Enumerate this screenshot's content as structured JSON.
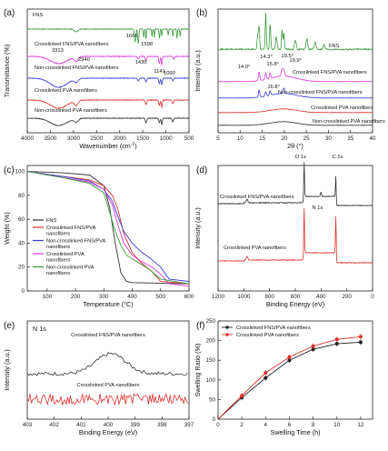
{
  "chart_data": [
    {
      "panel": "(a)",
      "type": "line",
      "xlabel_main": "Wavenumber (cm",
      "xlabel_unit": "-1",
      "xlabel_tail": ")",
      "ylabel": "Transmittance (%)",
      "xlim": [
        4000,
        500
      ],
      "xticks": [
        "4000",
        "3500",
        "3000",
        "2500",
        "2000",
        "1500",
        "1000",
        "500"
      ],
      "series": [
        {
          "name": "FNS",
          "color": "#3a9a3a"
        },
        {
          "name": "Crosslinked FNS/PVA nanofibers",
          "color": "#d838d8"
        },
        {
          "name": "Non-crosslinked FNS/PVA nanofibers",
          "color": "#3b3bd6"
        },
        {
          "name": "Crosslinked PVA nanofibers",
          "color": "#e03030"
        },
        {
          "name": "Non-crosslinked PVA nanofibers",
          "color": "#333333"
        }
      ],
      "annotations": [
        "1666",
        "1598",
        "3313",
        "2940",
        "1430",
        "1141",
        "1090"
      ]
    },
    {
      "panel": "(b)",
      "type": "line",
      "xlabel": "2θ (°)",
      "ylabel": "Intensity (a.u.)",
      "xlim": [
        5,
        40
      ],
      "xticks": [
        "5",
        "10",
        "15",
        "20",
        "25",
        "30",
        "35",
        "40"
      ],
      "series": [
        {
          "name": "FNS",
          "color": "#3a9a3a"
        },
        {
          "name": "Crosslinked FNS/PVA nanofibers",
          "color": "#d838d8"
        },
        {
          "name": "Non-crosslinked FNS/PVA nanofibers",
          "color": "#3b3bd6"
        },
        {
          "name": "Crosslinked PVA nanofibers",
          "color": "#e03030"
        },
        {
          "name": "Non-crosslinked PVA nanofibers",
          "color": "#333333"
        }
      ],
      "annotations": [
        "14.0°",
        "14.3°",
        "15.8°",
        "16.8°",
        "19.5°",
        "19.9°"
      ]
    },
    {
      "panel": "(c)",
      "type": "line",
      "xlabel": "Temperature (°C)",
      "ylabel": "Weight (%)",
      "xlim": [
        30,
        600
      ],
      "ylim": [
        0,
        105
      ],
      "xticks": [
        "100",
        "200",
        "300",
        "400",
        "500",
        "600"
      ],
      "yticks": [
        "0",
        "20",
        "40",
        "60",
        "80",
        "100"
      ],
      "series": [
        {
          "name": "FNS",
          "color": "#333333",
          "x": [
            30,
            150,
            250,
            300,
            320,
            340,
            360,
            380,
            400,
            600
          ],
          "y": [
            100,
            99,
            97,
            88,
            70,
            40,
            15,
            8,
            7,
            6
          ]
        },
        {
          "name": "Crosslinked FNS/PVA nanofibers",
          "color": "#e03030",
          "x": [
            30,
            150,
            250,
            300,
            330,
            350,
            370,
            400,
            430,
            470,
            500,
            600
          ],
          "y": [
            100,
            96,
            93,
            88,
            80,
            68,
            48,
            32,
            24,
            16,
            8,
            6
          ]
        },
        {
          "name": "Non-crosslinked FNS/PVA nanofibers",
          "color": "#3b3bd6",
          "x": [
            30,
            150,
            250,
            300,
            330,
            350,
            370,
            400,
            430,
            460,
            500,
            530,
            600
          ],
          "y": [
            100,
            96,
            92,
            85,
            75,
            62,
            50,
            40,
            33,
            28,
            20,
            10,
            8
          ]
        },
        {
          "name": "Crosslinked PVA nanofibers",
          "color": "#d838d8",
          "x": [
            30,
            150,
            250,
            300,
            330,
            350,
            370,
            400,
            430,
            470,
            500,
            530,
            600
          ],
          "y": [
            100,
            95,
            91,
            85,
            72,
            55,
            40,
            30,
            25,
            20,
            14,
            6,
            4
          ]
        },
        {
          "name": "Non-crosslinked PVA nanofibers",
          "color": "#3a9a3a",
          "x": [
            30,
            150,
            250,
            300,
            320,
            340,
            360,
            380,
            420,
            460,
            500,
            600
          ],
          "y": [
            100,
            95,
            90,
            82,
            66,
            50,
            38,
            30,
            24,
            18,
            10,
            6
          ]
        }
      ]
    },
    {
      "panel": "(d)",
      "type": "line",
      "xlabel": "Binding Energy (eV)",
      "ylabel": "Intensity (a.u.)",
      "xlim": [
        1200,
        0
      ],
      "xticks": [
        "1200",
        "1000",
        "800",
        "600",
        "400",
        "200",
        "0"
      ],
      "series": [
        {
          "name": "Crosslinked FNS/PVA nanofibers",
          "color": "#333333"
        },
        {
          "name": "Crosslinked PVA nanofibers",
          "color": "#e03030"
        }
      ],
      "annotations": [
        "O 1s",
        "C 1s",
        "N 1s"
      ]
    },
    {
      "panel": "(e)",
      "type": "line",
      "xlabel": "Binding Energy (eV)",
      "ylabel": "Intensity (a.u.)",
      "title": "N 1s",
      "xlim": [
        403,
        397
      ],
      "xticks": [
        "403",
        "402",
        "401",
        "400",
        "399",
        "398",
        "397"
      ],
      "series": [
        {
          "name": "Crosslinked FNS/PVA nanofibers",
          "color": "#333333"
        },
        {
          "name": "Crosslinked PVA nanofibers",
          "color": "#e03030"
        }
      ]
    },
    {
      "panel": "(f)",
      "type": "line",
      "xlabel": "Swelling Time (h)",
      "ylabel": "Swelling Ratio (%)",
      "xlim": [
        0,
        13
      ],
      "ylim": [
        0,
        250
      ],
      "xticks": [
        "0",
        "2",
        "4",
        "6",
        "8",
        "10",
        "12"
      ],
      "yticks": [
        "0",
        "50",
        "100",
        "150",
        "200",
        "250"
      ],
      "legend": "top-left",
      "x": [
        2,
        4,
        6,
        8,
        10,
        12
      ],
      "series": [
        {
          "name": "Crosslinked FNS/PVA nanofibers",
          "color": "#222222",
          "values": [
            55,
            105,
            150,
            178,
            192,
            196
          ]
        },
        {
          "name": "Crosslinked PVA nanofibers",
          "color": "#e03030",
          "values": [
            60,
            118,
            158,
            186,
            203,
            210
          ]
        }
      ]
    }
  ]
}
